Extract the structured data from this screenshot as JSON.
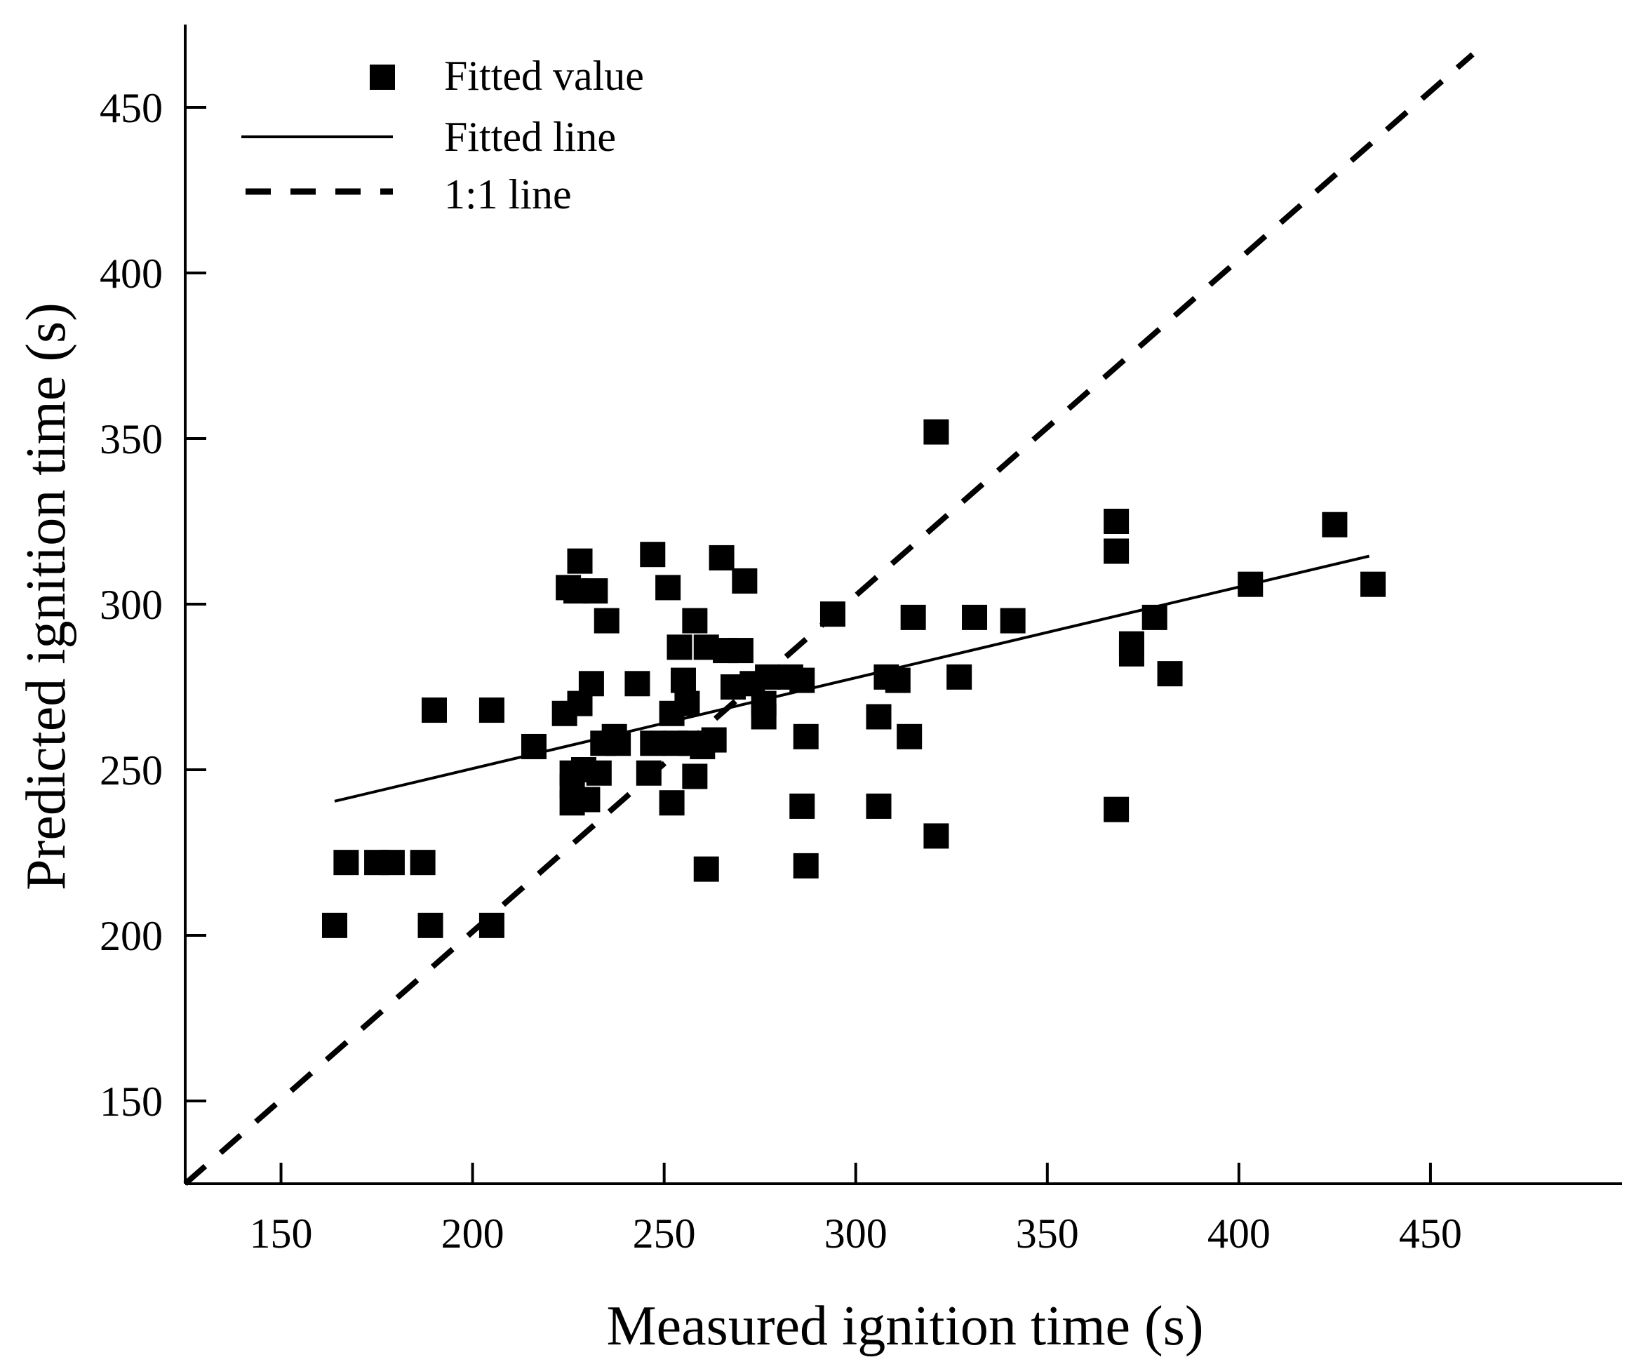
{
  "chart_data": {
    "type": "scatter",
    "title": "",
    "xlabel": "Measured ignition time (s)",
    "ylabel": "Predicted ignition time (s)",
    "xlim": [
      125,
      500
    ],
    "ylim": [
      125,
      475
    ],
    "xticks": [
      150,
      200,
      250,
      300,
      350,
      400,
      450
    ],
    "yticks": [
      150,
      200,
      250,
      300,
      350,
      400,
      450
    ],
    "grid": false,
    "legend_position": "top-left",
    "colors": {
      "marks": "#000000",
      "background": "#ffffff"
    },
    "legend": [
      {
        "label": "Fitted value",
        "kind": "square-marker"
      },
      {
        "label": "Fitted line",
        "kind": "solid-line"
      },
      {
        "label": "1:1 line",
        "kind": "dashed-line"
      }
    ],
    "series": [
      {
        "name": "Fitted value",
        "kind": "scatter",
        "points": [
          [
            164,
            203
          ],
          [
            167,
            222
          ],
          [
            175,
            222
          ],
          [
            179,
            222
          ],
          [
            187,
            222
          ],
          [
            189,
            203
          ],
          [
            190,
            268
          ],
          [
            205,
            268
          ],
          [
            205,
            203
          ],
          [
            216,
            257
          ],
          [
            224,
            267
          ],
          [
            225,
            305
          ],
          [
            226,
            240
          ],
          [
            226,
            245
          ],
          [
            226,
            249
          ],
          [
            227,
            304
          ],
          [
            228,
            270
          ],
          [
            228,
            313
          ],
          [
            229,
            250
          ],
          [
            230,
            241
          ],
          [
            231,
            276
          ],
          [
            232,
            304
          ],
          [
            233,
            249
          ],
          [
            234,
            258
          ],
          [
            235,
            295
          ],
          [
            237,
            260
          ],
          [
            238,
            258
          ],
          [
            243,
            276
          ],
          [
            246,
            249
          ],
          [
            247,
            258
          ],
          [
            247,
            315
          ],
          [
            251,
            305
          ],
          [
            252,
            240
          ],
          [
            252,
            267
          ],
          [
            253,
            258
          ],
          [
            254,
            287
          ],
          [
            255,
            277
          ],
          [
            256,
            270
          ],
          [
            257,
            258
          ],
          [
            258,
            295
          ],
          [
            258,
            248
          ],
          [
            260,
            257
          ],
          [
            261,
            220
          ],
          [
            261,
            287
          ],
          [
            263,
            259
          ],
          [
            265,
            314
          ],
          [
            266,
            286
          ],
          [
            268,
            275
          ],
          [
            270,
            286
          ],
          [
            271,
            307
          ],
          [
            273,
            276
          ],
          [
            276,
            266
          ],
          [
            276,
            270
          ],
          [
            277,
            278
          ],
          [
            283,
            278
          ],
          [
            286,
            277
          ],
          [
            286,
            239
          ],
          [
            287,
            260
          ],
          [
            287,
            221
          ],
          [
            294,
            297
          ],
          [
            306,
            266
          ],
          [
            306,
            239
          ],
          [
            308,
            278
          ],
          [
            311,
            277
          ],
          [
            314,
            260
          ],
          [
            315,
            296
          ],
          [
            321,
            352
          ],
          [
            321,
            230
          ],
          [
            327,
            278
          ],
          [
            331,
            296
          ],
          [
            341,
            295
          ],
          [
            368,
            325
          ],
          [
            368,
            316
          ],
          [
            368,
            238
          ],
          [
            372,
            288
          ],
          [
            372,
            285
          ],
          [
            378,
            296
          ],
          [
            382,
            279
          ],
          [
            403,
            306
          ],
          [
            425,
            324
          ],
          [
            435,
            306
          ]
        ]
      },
      {
        "name": "Fitted line",
        "kind": "line",
        "points": [
          [
            164,
            240.5
          ],
          [
            434,
            314.5
          ]
        ]
      },
      {
        "name": "1:1 line",
        "kind": "line",
        "points": [
          [
            125,
            125
          ],
          [
            461,
            466
          ]
        ]
      }
    ]
  }
}
